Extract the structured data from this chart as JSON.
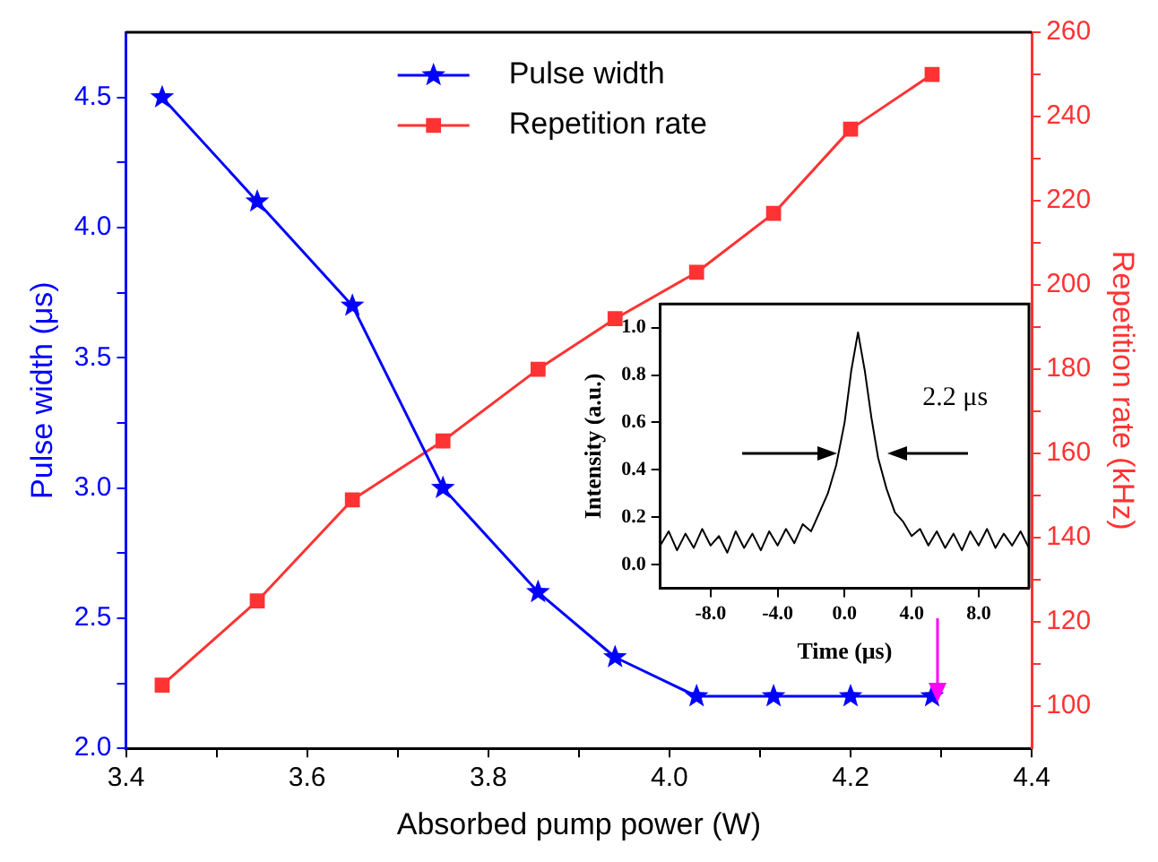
{
  "chart_data": [
    {
      "type": "line",
      "xlabel": "Absorbed pump power (W)",
      "ylabel": "Pulse width (μs)",
      "y2label": "Repetition rate (kHz)",
      "x": [
        3.44,
        3.545,
        3.65,
        3.75,
        3.855,
        3.94,
        4.03,
        4.115,
        4.2,
        4.29
      ],
      "series": [
        {
          "name": "Pulse width",
          "color": "#0000ff",
          "marker": "star",
          "values": [
            4.5,
            4.1,
            3.7,
            3.0,
            2.6,
            2.35,
            2.2,
            2.2,
            2.2,
            2.2
          ]
        },
        {
          "name": "Repetition rate",
          "color": "#ff3333",
          "marker": "square",
          "axis": "y2",
          "values": [
            105,
            125,
            149,
            163,
            180,
            192,
            203,
            217,
            237,
            250
          ]
        }
      ],
      "xlim": [
        3.4,
        4.4
      ],
      "xticks": [
        3.4,
        {
          "value": 3.5,
          "label": null
        },
        3.6,
        {
          "value": 3.7,
          "label": null
        },
        3.8,
        {
          "value": 3.9,
          "label": null
        },
        {
          "value": 4.0,
          "label": "4.0"
        },
        {
          "value": 4.1,
          "label": null
        },
        4.2,
        {
          "value": 4.3,
          "label": null
        },
        4.4
      ],
      "ylim": [
        2.0,
        4.75
      ],
      "yticks": [
        {
          "value": 2.0,
          "label": "2.0"
        },
        {
          "value": 2.25,
          "label": null
        },
        2.5,
        {
          "value": 2.75,
          "label": null
        },
        {
          "value": 3.0,
          "label": "3.0"
        },
        {
          "value": 3.25,
          "label": null
        },
        3.5,
        {
          "value": 3.75,
          "label": null
        },
        {
          "value": 4.0,
          "label": "4.0"
        },
        {
          "value": 4.25,
          "label": null
        },
        4.5
      ],
      "y2lim": [
        90,
        260
      ],
      "y2ticks": [
        100,
        {
          "value": 110,
          "label": null
        },
        120,
        {
          "value": 130,
          "label": null
        },
        140,
        {
          "value": 150,
          "label": null
        },
        160,
        {
          "value": 170,
          "label": null
        },
        180,
        {
          "value": 190,
          "label": null
        },
        200,
        {
          "value": 210,
          "label": null
        },
        220,
        {
          "value": 230,
          "label": null
        },
        240,
        {
          "value": 250,
          "label": null
        },
        260
      ],
      "grid": false,
      "legend": "top",
      "line_style": "solid"
    },
    {
      "type": "line",
      "xlabel": "Time (μs)",
      "ylabel": "Intensity (a.u.)",
      "x": [
        -11,
        -10.5,
        -10,
        -9.5,
        -9,
        -8.5,
        -8,
        -7.5,
        -7,
        -6.5,
        -6,
        -5.5,
        -5,
        -4.5,
        -4,
        -3.5,
        -3,
        -2.5,
        -2,
        -1.5,
        -1,
        -0.5,
        0,
        0.4,
        0.8,
        1.2,
        1.6,
        2,
        2.5,
        3,
        3.5,
        4,
        4.5,
        5,
        5.5,
        6,
        6.5,
        7,
        7.5,
        8,
        8.5,
        9,
        9.5,
        10,
        10.5,
        11
      ],
      "series": [
        {
          "color": "#000000",
          "marker": "none",
          "values": [
            0.08,
            0.14,
            0.06,
            0.13,
            0.07,
            0.15,
            0.08,
            0.12,
            0.05,
            0.14,
            0.07,
            0.13,
            0.06,
            0.14,
            0.08,
            0.15,
            0.09,
            0.17,
            0.14,
            0.22,
            0.3,
            0.42,
            0.6,
            0.82,
            0.98,
            0.82,
            0.62,
            0.45,
            0.32,
            0.22,
            0.18,
            0.12,
            0.15,
            0.08,
            0.14,
            0.07,
            0.13,
            0.06,
            0.14,
            0.08,
            0.15,
            0.07,
            0.13,
            0.08,
            0.14,
            0.07
          ]
        }
      ],
      "xlim": [
        -11,
        11
      ],
      "xticks": [
        {
          "value": -8,
          "label": "-8.0"
        },
        {
          "value": -4,
          "label": "-4.0"
        },
        {
          "value": 0,
          "label": "0.0"
        },
        {
          "value": 4,
          "label": "4.0"
        },
        {
          "value": 8,
          "label": "8.0"
        }
      ],
      "ylim": [
        -0.1,
        1.1
      ],
      "yticks": [
        {
          "value": 0,
          "label": "0.0"
        },
        0.2,
        0.4,
        0.6,
        0.8,
        {
          "value": 1.0,
          "label": "1.0"
        }
      ],
      "annotations": [
        "2.2 μs"
      ],
      "grid": false,
      "line_style": "solid"
    }
  ]
}
